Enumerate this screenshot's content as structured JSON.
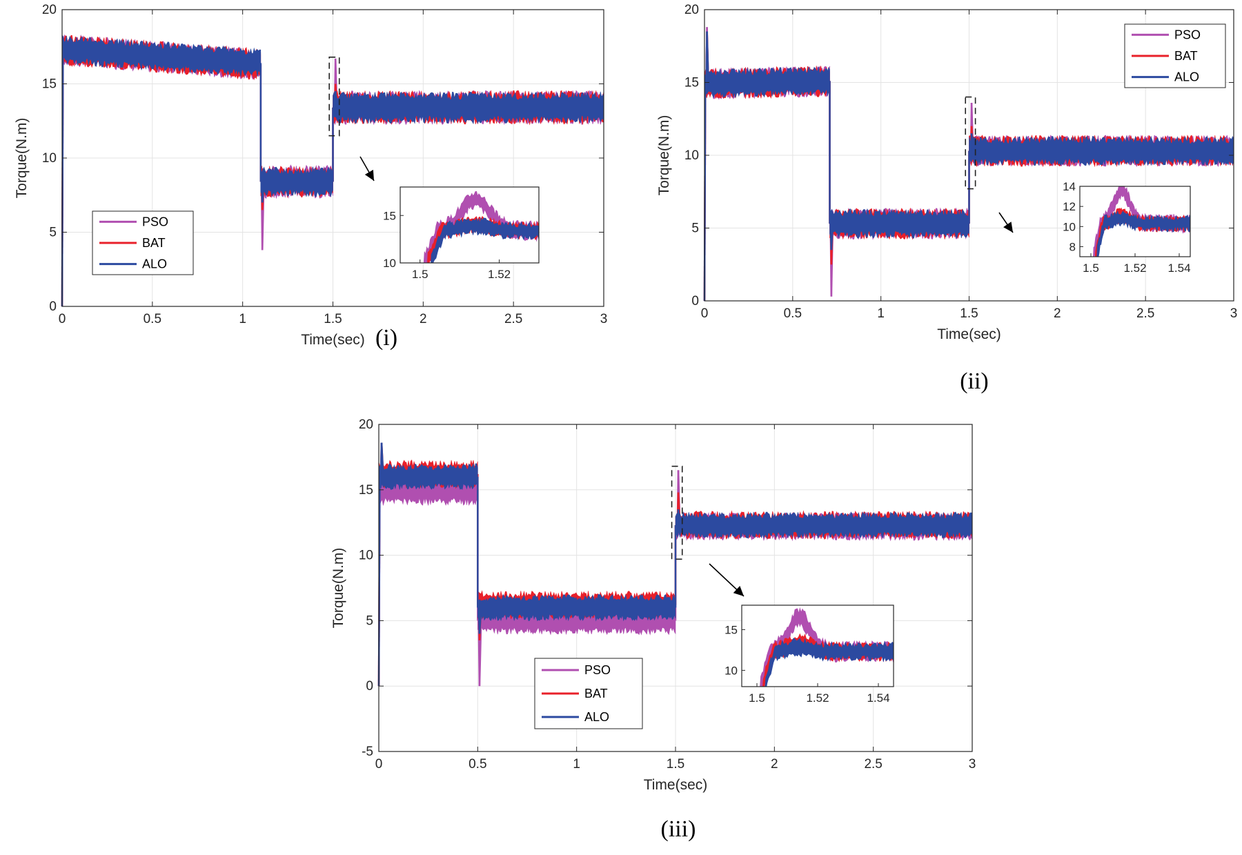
{
  "colors": {
    "PSO": "#b04fb0",
    "BAT": "#e8202a",
    "ALO": "#2c4aa0"
  },
  "chart_data": [
    {
      "type": "line",
      "caption": "(i)",
      "xlabel": "Time(sec)",
      "ylabel": "Torque(N.m)",
      "xlim": [
        0,
        3
      ],
      "ylim": [
        0,
        20
      ],
      "xticks": [
        "0",
        "0.5",
        "1",
        "1.5",
        "2",
        "2.5",
        "3"
      ],
      "yticks": [
        "0",
        "5",
        "10",
        "15",
        "20"
      ],
      "grid": true,
      "legend_position": "bottom-left",
      "series": [
        {
          "name": "PSO",
          "segments": [
            [
              0,
              1.1,
              17.3,
              16.3,
              1.6
            ],
            [
              1.1,
              1.5,
              8.4,
              8.4,
              1.7
            ],
            [
              1.5,
              3,
              13.4,
              13.4,
              1.7
            ]
          ],
          "peaks": [
            [
              1.105,
              3.8
            ],
            [
              1.51,
              16.7
            ]
          ]
        },
        {
          "name": "BAT",
          "segments": [
            [
              0,
              1.1,
              17.3,
              16.3,
              1.6
            ],
            [
              1.1,
              1.5,
              8.4,
              8.4,
              1.6
            ],
            [
              1.5,
              3,
              13.4,
              13.4,
              1.7
            ]
          ],
          "peaks": [
            [
              1.105,
              6.5
            ],
            [
              1.51,
              15.0
            ]
          ]
        },
        {
          "name": "ALO",
          "segments": [
            [
              0,
              1.1,
              17.3,
              16.4,
              1.5
            ],
            [
              1.1,
              1.5,
              8.4,
              8.4,
              1.5
            ],
            [
              1.5,
              3,
              13.4,
              13.4,
              1.6
            ]
          ],
          "peaks": [
            [
              1.105,
              7.0
            ],
            [
              1.51,
              14.5
            ]
          ]
        }
      ],
      "zoom": {
        "xlim": [
          1.495,
          1.53
        ],
        "ylim": [
          10,
          18
        ],
        "xticks": [
          "1.5",
          "1.52"
        ],
        "yticks": [
          "10",
          "15"
        ]
      }
    },
    {
      "type": "line",
      "caption": "(ii)",
      "xlabel": "Time(sec)",
      "ylabel": "Torque(N.m)",
      "xlim": [
        0,
        3
      ],
      "ylim": [
        0,
        20
      ],
      "xticks": [
        "0",
        "0.5",
        "1",
        "1.5",
        "2",
        "2.5",
        "3"
      ],
      "yticks": [
        "0",
        "5",
        "10",
        "15",
        "20"
      ],
      "grid": true,
      "legend_position": "top-right",
      "series": [
        {
          "name": "PSO",
          "segments": [
            [
              0,
              0.71,
              14.9,
              15.1,
              1.6
            ],
            [
              0.71,
              1.5,
              5.3,
              5.3,
              1.6
            ],
            [
              1.5,
              3,
              10.3,
              10.3,
              1.6
            ]
          ],
          "peaks": [
            [
              0.01,
              18.8
            ],
            [
              0.715,
              0.3
            ],
            [
              1.51,
              13.6
            ]
          ]
        },
        {
          "name": "BAT",
          "segments": [
            [
              0,
              0.71,
              14.9,
              15.1,
              1.6
            ],
            [
              0.71,
              1.5,
              5.3,
              5.3,
              1.6
            ],
            [
              1.5,
              3,
              10.3,
              10.3,
              1.6
            ]
          ],
          "peaks": [
            [
              0.01,
              18.5
            ],
            [
              0.715,
              2.5
            ],
            [
              1.51,
              12.0
            ]
          ]
        },
        {
          "name": "ALO",
          "segments": [
            [
              0,
              0.71,
              14.9,
              15.1,
              1.5
            ],
            [
              0.71,
              1.5,
              5.3,
              5.3,
              1.5
            ],
            [
              1.5,
              3,
              10.3,
              10.3,
              1.5
            ]
          ],
          "peaks": [
            [
              0.01,
              18.5
            ],
            [
              0.715,
              3.5
            ],
            [
              1.51,
              11.5
            ]
          ]
        }
      ],
      "zoom": {
        "xlim": [
          1.495,
          1.545
        ],
        "ylim": [
          7,
          14
        ],
        "xticks": [
          "1.5",
          "1.52",
          "1.54"
        ],
        "yticks": [
          "8",
          "10",
          "12",
          "14"
        ]
      }
    },
    {
      "type": "line",
      "caption": "(iii)",
      "xlabel": "Time(sec)",
      "ylabel": "Torque(N.m)",
      "xlim": [
        0,
        3
      ],
      "ylim": [
        -5,
        20
      ],
      "xticks": [
        "0",
        "0.5",
        "1",
        "1.5",
        "2",
        "2.5",
        "3"
      ],
      "yticks": [
        "-5",
        "0",
        "5",
        "10",
        "15",
        "20"
      ],
      "grid": true,
      "legend_position": "bottom-center",
      "series": [
        {
          "name": "PSO",
          "segments": [
            [
              0,
              0.5,
              15.0,
              15.0,
              1.8
            ],
            [
              0.5,
              1.5,
              5.0,
              5.0,
              1.6
            ],
            [
              1.5,
              3,
              12.2,
              12.2,
              1.6
            ]
          ],
          "peaks": [
            [
              0.505,
              0.0
            ],
            [
              1.51,
              16.5
            ]
          ]
        },
        {
          "name": "BAT",
          "segments": [
            [
              0,
              0.5,
              16.2,
              16.2,
              1.6
            ],
            [
              0.5,
              1.5,
              6.2,
              6.2,
              1.6
            ],
            [
              1.5,
              3,
              12.3,
              12.3,
              1.6
            ]
          ],
          "peaks": [
            [
              0.01,
              18.6
            ],
            [
              0.505,
              3.5
            ],
            [
              1.51,
              14.8
            ]
          ]
        },
        {
          "name": "ALO",
          "segments": [
            [
              0,
              0.5,
              16.0,
              16.0,
              1.5
            ],
            [
              0.5,
              1.5,
              6.0,
              6.0,
              1.5
            ],
            [
              1.5,
              3,
              12.3,
              12.3,
              1.5
            ]
          ],
          "peaks": [
            [
              0.01,
              18.6
            ],
            [
              0.505,
              4.0
            ],
            [
              1.51,
              13.5
            ]
          ]
        }
      ],
      "zoom": {
        "xlim": [
          1.495,
          1.545
        ],
        "ylim": [
          8,
          18
        ],
        "xticks": [
          "1.5",
          "1.52",
          "1.54"
        ],
        "yticks": [
          "10",
          "15"
        ]
      }
    }
  ]
}
